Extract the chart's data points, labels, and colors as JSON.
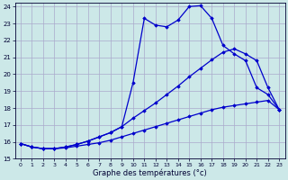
{
  "xlabel": "Graphe des températures (°c)",
  "background_color": "#cce8e8",
  "grid_color": "#aaaacc",
  "line_color": "#0000cc",
  "xlim": [
    -0.5,
    23.5
  ],
  "ylim": [
    15,
    24.2
  ],
  "yticks": [
    15,
    16,
    17,
    18,
    19,
    20,
    21,
    22,
    23,
    24
  ],
  "xticks": [
    0,
    1,
    2,
    3,
    4,
    5,
    6,
    7,
    8,
    9,
    10,
    11,
    12,
    13,
    14,
    15,
    16,
    17,
    18,
    19,
    20,
    21,
    22,
    23
  ],
  "line1_x": [
    0,
    1,
    2,
    3,
    4,
    5,
    6,
    7,
    8,
    9,
    10,
    11,
    12,
    13,
    14,
    15,
    16,
    17,
    18,
    19,
    20,
    21,
    22,
    23
  ],
  "line1_y": [
    15.9,
    15.7,
    15.6,
    15.6,
    15.65,
    15.75,
    15.85,
    15.95,
    16.1,
    16.3,
    16.5,
    16.7,
    16.9,
    17.1,
    17.3,
    17.5,
    17.7,
    17.9,
    18.05,
    18.15,
    18.25,
    18.35,
    18.45,
    17.9
  ],
  "line2_x": [
    0,
    1,
    2,
    3,
    4,
    5,
    6,
    7,
    8,
    9,
    10,
    11,
    12,
    13,
    14,
    15,
    16,
    17,
    18,
    19,
    20,
    21,
    22,
    23
  ],
  "line2_y": [
    15.9,
    15.7,
    15.6,
    15.6,
    15.7,
    15.85,
    16.05,
    16.3,
    16.55,
    16.9,
    17.4,
    17.85,
    18.3,
    18.8,
    19.3,
    19.85,
    20.35,
    20.85,
    21.3,
    21.5,
    21.2,
    20.8,
    19.2,
    17.9
  ],
  "line3_x": [
    0,
    1,
    2,
    3,
    4,
    5,
    6,
    7,
    8,
    9,
    10,
    11,
    12,
    13,
    14,
    15,
    16,
    17,
    18,
    19,
    20,
    21,
    22,
    23
  ],
  "line3_y": [
    15.9,
    15.7,
    15.6,
    15.6,
    15.7,
    15.85,
    16.05,
    16.3,
    16.55,
    16.9,
    19.5,
    23.3,
    22.9,
    22.8,
    23.2,
    24.0,
    24.05,
    23.3,
    21.7,
    21.2,
    20.8,
    19.2,
    18.8,
    17.9
  ]
}
